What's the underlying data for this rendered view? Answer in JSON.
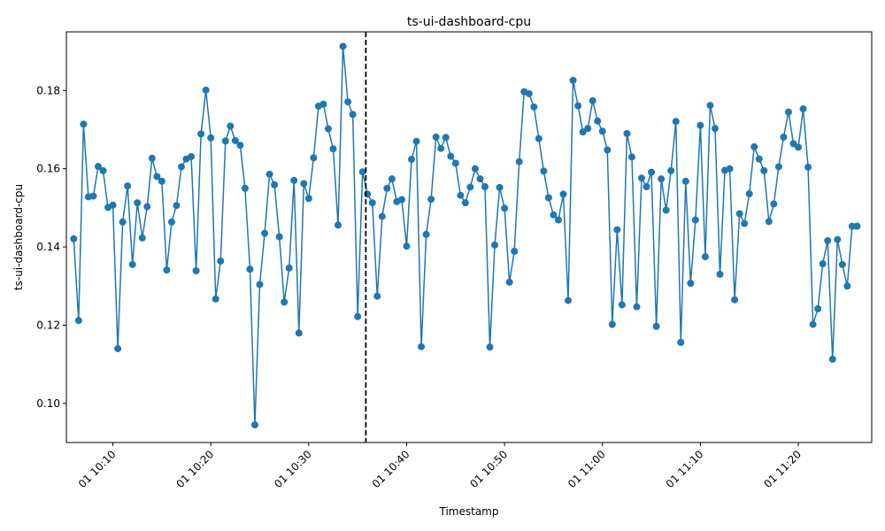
{
  "chart_data": {
    "type": "line",
    "title": "ts-ui-dashboard-cpu",
    "xlabel": "Timestamp",
    "ylabel": "ts-ui-dashboard-cpu",
    "ylim": [
      0.09,
      0.195
    ],
    "xlim": [
      "2000-01-01T10:05:15",
      "2000-01-01T11:27:30"
    ],
    "x_start": "2000-01-01T10:06:00",
    "x_step_seconds": 30,
    "y_ticks": [
      0.1,
      0.12,
      0.14,
      0.16,
      0.18
    ],
    "y_tick_labels": [
      "0.10",
      "0.12",
      "0.14",
      "0.16",
      "0.18"
    ],
    "x_ticks": [
      "2000-01-01T10:10:00",
      "2000-01-01T10:20:00",
      "2000-01-01T10:30:00",
      "2000-01-01T10:40:00",
      "2000-01-01T10:50:00",
      "2000-01-01T11:00:00",
      "2000-01-01T11:10:00",
      "2000-01-01T11:20:00"
    ],
    "x_tick_labels": [
      "01 10:10",
      "01 10:20",
      "01 10:30",
      "01 10:40",
      "01 10:50",
      "01 11:00",
      "01 11:10",
      "01 11:20"
    ],
    "vline_x": "2000-01-01T10:35:50",
    "grid": false,
    "series": [
      {
        "color": "#1f77b4",
        "values": [
          0.1421,
          0.1212,
          0.1714,
          0.1528,
          0.153,
          0.1606,
          0.1595,
          0.1501,
          0.1507,
          0.114,
          0.1464,
          0.1556,
          0.1355,
          0.1513,
          0.1423,
          0.1503,
          0.1627,
          0.158,
          0.1568,
          0.1341,
          0.1464,
          0.1506,
          0.1605,
          0.1625,
          0.1631,
          0.1339,
          0.1689,
          0.1801,
          0.1679,
          0.1267,
          0.1364,
          0.1671,
          0.1709,
          0.1672,
          0.166,
          0.155,
          0.1343,
          0.0945,
          0.1304,
          0.1435,
          0.1586,
          0.1559,
          0.1426,
          0.1259,
          0.1346,
          0.157,
          0.118,
          0.1562,
          0.1524,
          0.1628,
          0.176,
          0.1765,
          0.1702,
          0.1651,
          0.1456,
          0.1913,
          0.1771,
          0.1739,
          0.1222,
          0.1592,
          0.1535,
          0.1513,
          0.1274,
          0.1478,
          0.155,
          0.1574,
          0.1516,
          0.1521,
          0.1402,
          0.1624,
          0.167,
          0.1145,
          0.1432,
          0.1522,
          0.1681,
          0.1652,
          0.168,
          0.1632,
          0.1614,
          0.1532,
          0.1513,
          0.1553,
          0.16,
          0.1574,
          0.1554,
          0.1144,
          0.1405,
          0.1552,
          0.1499,
          0.131,
          0.1389,
          0.1618,
          0.1797,
          0.1792,
          0.1758,
          0.1677,
          0.1594,
          0.1526,
          0.1482,
          0.1469,
          0.1535,
          0.1263,
          0.1826,
          0.1761,
          0.1694,
          0.1703,
          0.1774,
          0.1722,
          0.1696,
          0.1648,
          0.1202,
          0.1444,
          0.1252,
          0.169,
          0.163,
          0.1247,
          0.1576,
          0.1554,
          0.1591,
          0.1197,
          0.1574,
          0.1494,
          0.1595,
          0.1721,
          0.1156,
          0.1568,
          0.1307,
          0.1469,
          0.1711,
          0.1375,
          0.1762,
          0.1703,
          0.133,
          0.1596,
          0.16,
          0.1265,
          0.1485,
          0.146,
          0.1536,
          0.1656,
          0.1625,
          0.1595,
          0.1465,
          0.151,
          0.1605,
          0.1681,
          0.1745,
          0.1664,
          0.1655,
          0.1753,
          0.1604,
          0.1202,
          0.1242,
          0.1357,
          0.1416,
          0.1113,
          0.1419,
          0.1355,
          0.13,
          0.1453,
          0.1453
        ]
      }
    ]
  }
}
